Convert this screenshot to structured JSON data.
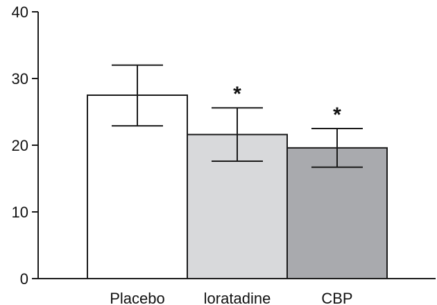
{
  "chart_data": {
    "type": "bar",
    "title": "",
    "xlabel": "",
    "ylabel": "",
    "ylim": [
      0,
      40
    ],
    "yticks": [
      0,
      10,
      20,
      30,
      40
    ],
    "grid": false,
    "categories": [
      "Placebo",
      "loratadine",
      "CBP"
    ],
    "values": [
      27.5,
      21.6,
      19.6
    ],
    "error_low": [
      22.9,
      17.6,
      16.7
    ],
    "error_high": [
      32.0,
      25.6,
      22.5
    ],
    "significance": [
      "",
      "*",
      "*"
    ],
    "bar_colors": [
      "#ffffff",
      "#d8d9db",
      "#a9aaae"
    ]
  }
}
